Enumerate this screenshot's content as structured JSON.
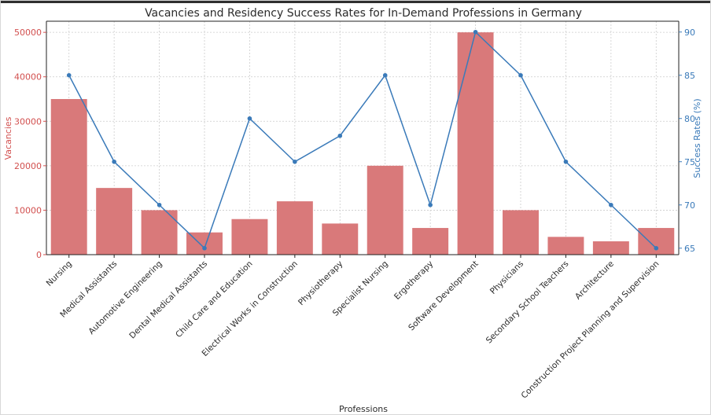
{
  "chart_data": {
    "type": "bar",
    "title": "Vacancies and Residency Success Rates for In-Demand Professions in Germany",
    "xlabel": "Professions",
    "ylabel": "Vacancies",
    "y2label": "Success Rates (%)",
    "categories": [
      "Nursing",
      "Medical Assistants",
      "Automotive Engineering",
      "Dental Medical Assistants",
      "Child Care and Education",
      "Electrical Works in Construction",
      "Physiotherapy",
      "Specialist Nursing",
      "Ergotherapy",
      "Software Development",
      "Physicians",
      "Secondary School Teachers",
      "Architecture",
      "Construction Project Planning and Supervision"
    ],
    "series": [
      {
        "type": "bar",
        "axis": "left",
        "color": "#d9797a",
        "values": [
          35000,
          15000,
          10000,
          5000,
          8000,
          12000,
          7000,
          20000,
          6000,
          50000,
          10000,
          4000,
          3000,
          6000
        ]
      },
      {
        "type": "line",
        "axis": "right",
        "color": "#3a7ab9",
        "values": [
          85,
          75,
          70,
          65,
          80,
          75,
          78,
          85,
          70,
          90,
          85,
          75,
          70,
          65
        ]
      }
    ],
    "ylim": [
      0,
      52500
    ],
    "y2lim": [
      64.25,
      91.25
    ],
    "yticks": [
      0,
      10000,
      20000,
      30000,
      40000,
      50000
    ],
    "y2ticks": [
      65,
      70,
      75,
      80,
      85,
      90
    ],
    "grid": true,
    "colors": {
      "left_axis": "#d2504f",
      "right_axis": "#3a7ab9",
      "grid": "#cccccc"
    }
  }
}
